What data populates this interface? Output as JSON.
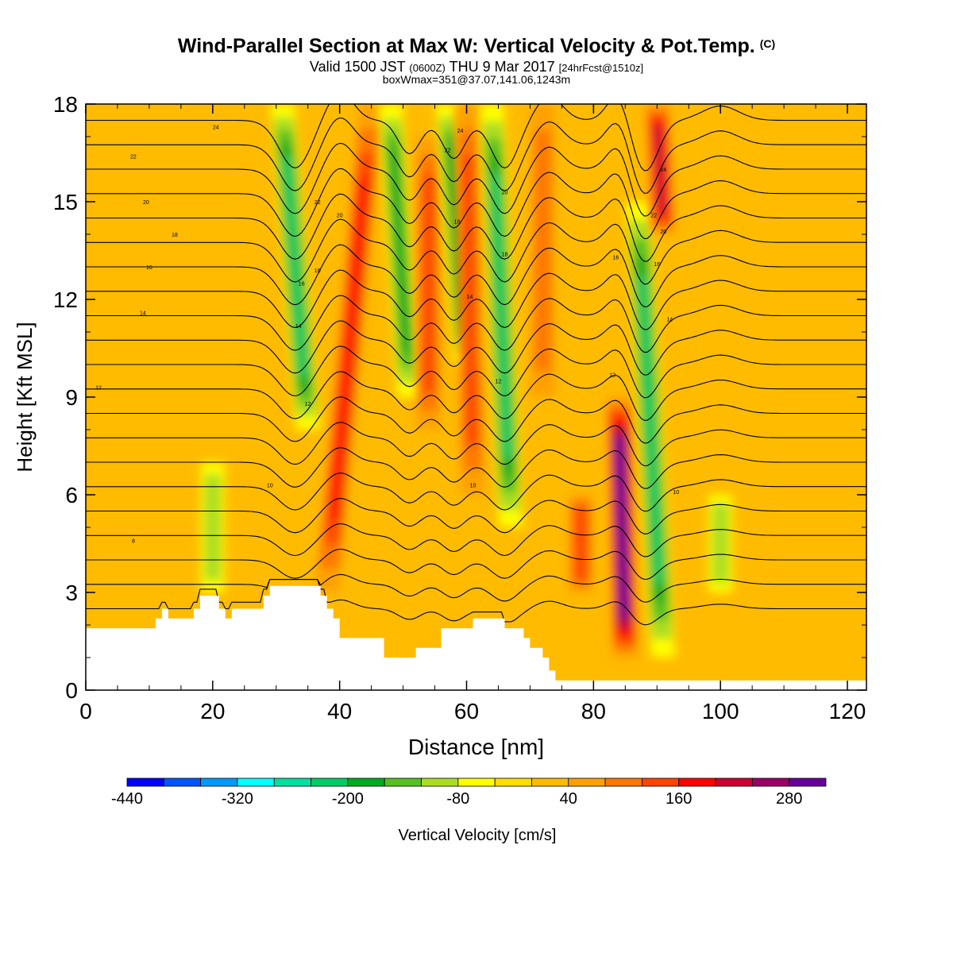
{
  "header": {
    "title": "Wind-Parallel Section at Max W: Vertical Velocity & Pot.Temp.",
    "copyright": "(C)",
    "subtitle_a": "Valid 1500 JST",
    "subtitle_b": "(0600Z)",
    "subtitle_c": "THU 9 Mar 2017",
    "subtitle_d": "[24hrFcst@1510z]",
    "subtitle2": "boxWmax=351@37.07,141.06,1243m"
  },
  "chart_data": {
    "type": "heatmap",
    "xlabel": "Distance [nm]",
    "ylabel": "Height [Kft MSL]",
    "xlim": [
      0,
      123
    ],
    "ylim": [
      0,
      18
    ],
    "x_ticks": [
      0,
      20,
      40,
      60,
      80,
      100,
      120
    ],
    "y_ticks": [
      0,
      3,
      6,
      9,
      12,
      15,
      18
    ],
    "field": "Vertical Velocity [cm/s]",
    "background_value_range": [
      -40,
      40
    ],
    "features": [
      {
        "kind": "updraft",
        "x_base": 38,
        "x_top": 45,
        "y_range": [
          3,
          18
        ],
        "max_value": 180
      },
      {
        "kind": "downdraft",
        "x_base": 35,
        "x_top": 31,
        "y_range": [
          8,
          18
        ],
        "min_value": -200
      },
      {
        "kind": "downdraft",
        "x_base": 51,
        "x_top": 48,
        "y_range": [
          9,
          18
        ],
        "min_value": -160
      },
      {
        "kind": "updraft",
        "x_base": 54,
        "x_top": 54,
        "y_range": [
          8,
          17
        ],
        "max_value": 120
      },
      {
        "kind": "downdraft",
        "x_base": 60,
        "x_top": 57,
        "y_range": [
          10,
          18
        ],
        "min_value": -160
      },
      {
        "kind": "updraft",
        "x_base": 61,
        "x_top": 60,
        "y_range": [
          6,
          18
        ],
        "max_value": 120
      },
      {
        "kind": "downdraft",
        "x_base": 67,
        "x_top": 64,
        "y_range": [
          5,
          18
        ],
        "min_value": -200
      },
      {
        "kind": "updraft",
        "x_base": 72,
        "x_top": 72,
        "y_range": [
          9,
          18
        ],
        "max_value": 100
      },
      {
        "kind": "updraft",
        "x_base": 85,
        "x_top": 84,
        "y_range": [
          1,
          9
        ],
        "max_value": 351
      },
      {
        "kind": "downdraft",
        "x_base": 91,
        "x_top": 87,
        "y_range": [
          1,
          15
        ],
        "min_value": -200
      },
      {
        "kind": "updraft",
        "x_base": 91,
        "x_top": 90,
        "y_range": [
          14,
          18
        ],
        "max_value": 200
      },
      {
        "kind": "updraft",
        "x_base": 78,
        "x_top": 78,
        "y_range": [
          3,
          6
        ],
        "max_value": 120
      },
      {
        "kind": "downdraft",
        "x_base": 100,
        "x_top": 100,
        "y_range": [
          3,
          6
        ],
        "min_value": -100
      },
      {
        "kind": "downdraft",
        "x_base": 20,
        "x_top": 20,
        "y_range": [
          3,
          7
        ],
        "min_value": -100
      }
    ],
    "terrain_profile": {
      "x": [
        0,
        10,
        11,
        12,
        13,
        16,
        17,
        18,
        20,
        21,
        22,
        23,
        24,
        28,
        29,
        36,
        37,
        38,
        39,
        40,
        46,
        47,
        51,
        52,
        55,
        56,
        60,
        61,
        65,
        66,
        69,
        70,
        72,
        73,
        74,
        75,
        123
      ],
      "height_kft": [
        1.9,
        1.9,
        2.2,
        2.5,
        2.2,
        2.2,
        2.5,
        2.9,
        2.9,
        2.5,
        2.2,
        2.5,
        2.5,
        2.9,
        3.2,
        3.2,
        2.9,
        2.5,
        2.2,
        1.6,
        1.6,
        1.0,
        1.0,
        1.3,
        1.3,
        1.9,
        1.9,
        2.2,
        2.2,
        1.9,
        1.6,
        1.3,
        1.0,
        0.6,
        0.3,
        0.3,
        0.3
      ]
    },
    "theta_contours": {
      "unit": "deg C",
      "levels": [
        8,
        10,
        12,
        14,
        16,
        18,
        20,
        22,
        24
      ],
      "labels": [
        {
          "text": "8",
          "x": 7.5,
          "y": 4.6
        },
        {
          "text": "10",
          "x": 29,
          "y": 6.3
        },
        {
          "text": "10",
          "x": 61,
          "y": 6.3
        },
        {
          "text": "10",
          "x": 93,
          "y": 6.1
        },
        {
          "text": "12",
          "x": 2,
          "y": 9.3
        },
        {
          "text": "12",
          "x": 35,
          "y": 8.8
        },
        {
          "text": "12",
          "x": 65,
          "y": 9.5
        },
        {
          "text": "12",
          "x": 83,
          "y": 9.7
        },
        {
          "text": "14",
          "x": 9,
          "y": 11.6
        },
        {
          "text": "14",
          "x": 33.5,
          "y": 11.2
        },
        {
          "text": "14",
          "x": 60.5,
          "y": 12.1
        },
        {
          "text": "14",
          "x": 92,
          "y": 11.4
        },
        {
          "text": "16",
          "x": 10,
          "y": 13.0
        },
        {
          "text": "16",
          "x": 34,
          "y": 12.5
        },
        {
          "text": "16",
          "x": 36.5,
          "y": 12.9
        },
        {
          "text": "16",
          "x": 83.5,
          "y": 13.3
        },
        {
          "text": "16",
          "x": 90,
          "y": 13.1
        },
        {
          "text": "18",
          "x": 14,
          "y": 14.0
        },
        {
          "text": "18",
          "x": 58.5,
          "y": 14.4
        },
        {
          "text": "18",
          "x": 66,
          "y": 13.4
        },
        {
          "text": "20",
          "x": 9.5,
          "y": 15.0
        },
        {
          "text": "20",
          "x": 40,
          "y": 14.6
        },
        {
          "text": "20",
          "x": 66,
          "y": 15.3
        },
        {
          "text": "20",
          "x": 91,
          "y": 14.1
        },
        {
          "text": "22",
          "x": 7.5,
          "y": 16.4
        },
        {
          "text": "22",
          "x": 36.5,
          "y": 15.0
        },
        {
          "text": "22",
          "x": 57,
          "y": 16.6
        },
        {
          "text": "22",
          "x": 89.5,
          "y": 14.6
        },
        {
          "text": "24",
          "x": 20.5,
          "y": 17.3
        },
        {
          "text": "24",
          "x": 59,
          "y": 17.2
        },
        {
          "text": "24",
          "x": 91,
          "y": 16.0
        }
      ]
    },
    "colorbar": {
      "label": "Vertical Velocity [cm/s]",
      "tick_labels": [
        "-440",
        "-320",
        "-200",
        "-80",
        "40",
        "160",
        "280"
      ],
      "boundaries": [
        -440,
        -400,
        -360,
        -320,
        -280,
        -240,
        -200,
        -160,
        -120,
        -80,
        -40,
        0,
        40,
        80,
        120,
        160,
        200,
        240,
        280,
        320
      ],
      "colors": [
        "#0000ff",
        "#0055ff",
        "#0099ff",
        "#00ffff",
        "#00e0a0",
        "#00cc66",
        "#00aa22",
        "#55c022",
        "#aadd22",
        "#ffff00",
        "#ffdd00",
        "#ffbb00",
        "#ffa000",
        "#ff7700",
        "#ff4400",
        "#ff0000",
        "#cc0033",
        "#990066",
        "#660099"
      ]
    }
  }
}
